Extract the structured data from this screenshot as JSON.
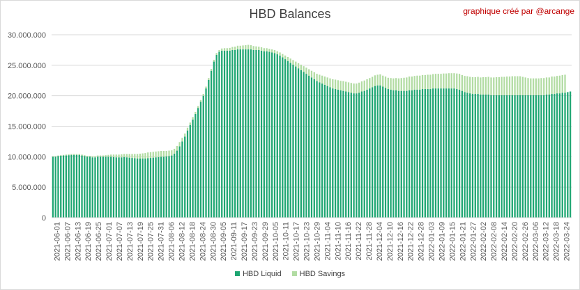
{
  "header": {
    "title": "HBD Balances",
    "credit": "graphique créé par @arcange"
  },
  "colors": {
    "liquid": "#1ea672",
    "savings": "#b2dca3",
    "grid": "#d9d9d9",
    "axis_text": "#595959"
  },
  "chart_data": {
    "type": "bar",
    "stacked": true,
    "title": "HBD Balances",
    "xlabel": "",
    "ylabel": "",
    "ylim": [
      0,
      30000000
    ],
    "y_ticks": [
      0,
      5000000,
      10000000,
      15000000,
      20000000,
      25000000,
      30000000
    ],
    "y_tick_labels": [
      "0",
      "5.000.000",
      "10.000.000",
      "15.000.000",
      "20.000.000",
      "25.000.000",
      "30.000.000"
    ],
    "x_tick_labels": [
      "2021-06-01",
      "2021-06-07",
      "2021-06-13",
      "2021-06-19",
      "2021-06-25",
      "2021-07-01",
      "2021-07-07",
      "2021-07-13",
      "2021-07-19",
      "2021-07-25",
      "2021-07-31",
      "2021-08-06",
      "2021-08-12",
      "2021-08-18",
      "2021-08-24",
      "2021-08-30",
      "2021-09-05",
      "2021-09-11",
      "2021-09-17",
      "2021-09-23",
      "2021-09-29",
      "2021-10-05",
      "2021-10-11",
      "2021-10-17",
      "2021-10-23",
      "2021-10-29",
      "2021-11-04",
      "2021-11-10",
      "2021-11-16",
      "2021-11-22",
      "2021-11-28",
      "2021-12-04",
      "2021-12-10",
      "2021-12-16",
      "2021-12-22",
      "2021-12-28",
      "2022-01-03",
      "2022-01-09",
      "2022-01-15",
      "2022-01-21",
      "2022-01-27",
      "2022-02-02",
      "2022-02-08",
      "2022-02-14",
      "2022-02-20",
      "2022-02-26",
      "2022-03-06",
      "2022-03-12",
      "2022-03-18",
      "2022-03-24"
    ],
    "legend_position": "bottom",
    "grid": true,
    "series": [
      {
        "name": "HBD Liquid",
        "color": "#1ea672",
        "values": [
          10000000,
          10000000,
          10100000,
          10150000,
          10200000,
          10200000,
          10250000,
          10300000,
          10300000,
          10300000,
          10300000,
          10200000,
          10100000,
          10000000,
          10000000,
          9900000,
          9900000,
          10000000,
          10000000,
          10000000,
          10000000,
          10000000,
          10000000,
          9950000,
          9900000,
          9900000,
          9900000,
          9950000,
          9900000,
          9850000,
          9800000,
          9750000,
          9700000,
          9700000,
          9700000,
          9700000,
          9750000,
          9800000,
          9850000,
          9900000,
          9950000,
          10000000,
          10000000,
          10050000,
          10100000,
          10200000,
          10500000,
          11000000,
          11700000,
          12500000,
          13300000,
          14300000,
          15200000,
          16100000,
          17000000,
          18000000,
          19000000,
          20000000,
          21200000,
          22600000,
          24100000,
          25600000,
          26700000,
          27200000,
          27400000,
          27400000,
          27400000,
          27400000,
          27500000,
          27500000,
          27600000,
          27600000,
          27600000,
          27600000,
          27600000,
          27600000,
          27500000,
          27500000,
          27500000,
          27400000,
          27300000,
          27300000,
          27200000,
          27100000,
          27000000,
          26800000,
          26600000,
          26300000,
          26000000,
          25700000,
          25400000,
          25100000,
          24800000,
          24500000,
          24200000,
          23900000,
          23600000,
          23300000,
          23000000,
          22700000,
          22400000,
          22200000,
          22000000,
          21800000,
          21600000,
          21400000,
          21200000,
          21100000,
          21000000,
          20900000,
          20800000,
          20700000,
          20600000,
          20500000,
          20400000,
          20400000,
          20500000,
          20700000,
          20800000,
          21000000,
          21200000,
          21400000,
          21600000,
          21700000,
          21700000,
          21500000,
          21300000,
          21100000,
          21000000,
          20900000,
          20900000,
          20800000,
          20800000,
          20800000,
          20800000,
          20900000,
          20900000,
          21000000,
          21000000,
          21000000,
          21100000,
          21100000,
          21100000,
          21100000,
          21200000,
          21200000,
          21200000,
          21200000,
          21200000,
          21200000,
          21200000,
          21200000,
          21200000,
          21100000,
          21000000,
          20800000,
          20600000,
          20500000,
          20400000,
          20300000,
          20300000,
          20300000,
          20200000,
          20200000,
          20200000,
          20200000,
          20100000,
          20100000,
          20100000,
          20100000,
          20100000,
          20100000,
          20100000,
          20100000,
          20100000,
          20100000,
          20100000,
          20100000,
          20100000,
          20100000,
          20100000,
          20100000,
          20100000,
          20100000,
          20100000,
          20100000,
          20100000,
          20200000,
          20200000,
          20300000,
          20300000,
          20400000,
          20400000,
          20500000,
          20500000,
          20600000,
          20700000
        ]
      },
      {
        "name": "HBD Savings",
        "color": "#b2dca3",
        "values": [
          100000,
          100000,
          100000,
          100000,
          100000,
          150000,
          150000,
          150000,
          150000,
          150000,
          150000,
          150000,
          150000,
          150000,
          150000,
          200000,
          200000,
          200000,
          200000,
          200000,
          250000,
          300000,
          350000,
          400000,
          450000,
          450000,
          500000,
          500000,
          550000,
          600000,
          650000,
          700000,
          750000,
          800000,
          850000,
          900000,
          950000,
          950000,
          950000,
          950000,
          950000,
          950000,
          950000,
          900000,
          900000,
          850000,
          800000,
          750000,
          700000,
          600000,
          500000,
          450000,
          400000,
          400000,
          350000,
          300000,
          300000,
          300000,
          300000,
          300000,
          300000,
          300000,
          300000,
          300000,
          350000,
          400000,
          400000,
          450000,
          500000,
          550000,
          600000,
          600000,
          650000,
          700000,
          750000,
          700000,
          650000,
          600000,
          550000,
          550000,
          500000,
          500000,
          500000,
          500000,
          500000,
          500000,
          500000,
          550000,
          600000,
          650000,
          700000,
          750000,
          800000,
          850000,
          900000,
          950000,
          1000000,
          1050000,
          1100000,
          1150000,
          1200000,
          1250000,
          1300000,
          1350000,
          1400000,
          1450000,
          1500000,
          1550000,
          1550000,
          1550000,
          1600000,
          1600000,
          1600000,
          1600000,
          1600000,
          1600000,
          1650000,
          1650000,
          1700000,
          1700000,
          1700000,
          1700000,
          1750000,
          1750000,
          1800000,
          1800000,
          1850000,
          1850000,
          1900000,
          1950000,
          2000000,
          2050000,
          2100000,
          2150000,
          2200000,
          2250000,
          2250000,
          2250000,
          2300000,
          2300000,
          2300000,
          2300000,
          2350000,
          2350000,
          2350000,
          2400000,
          2400000,
          2400000,
          2450000,
          2450000,
          2500000,
          2500000,
          2500000,
          2550000,
          2600000,
          2600000,
          2650000,
          2700000,
          2700000,
          2750000,
          2750000,
          2800000,
          2800000,
          2850000,
          2850000,
          2900000,
          2900000,
          2900000,
          2950000,
          2950000,
          3000000,
          3000000,
          3050000,
          3050000,
          3100000,
          3100000,
          3100000,
          3100000,
          3000000,
          2900000,
          2800000,
          2750000,
          2750000,
          2750000,
          2750000,
          2800000,
          2800000,
          2800000,
          2800000,
          2850000,
          2850000,
          2850000,
          2900000,
          2900000,
          2950000
        ]
      }
    ]
  },
  "legend": {
    "liquid_label": "HBD Liquid",
    "savings_label": "HBD Savings"
  }
}
